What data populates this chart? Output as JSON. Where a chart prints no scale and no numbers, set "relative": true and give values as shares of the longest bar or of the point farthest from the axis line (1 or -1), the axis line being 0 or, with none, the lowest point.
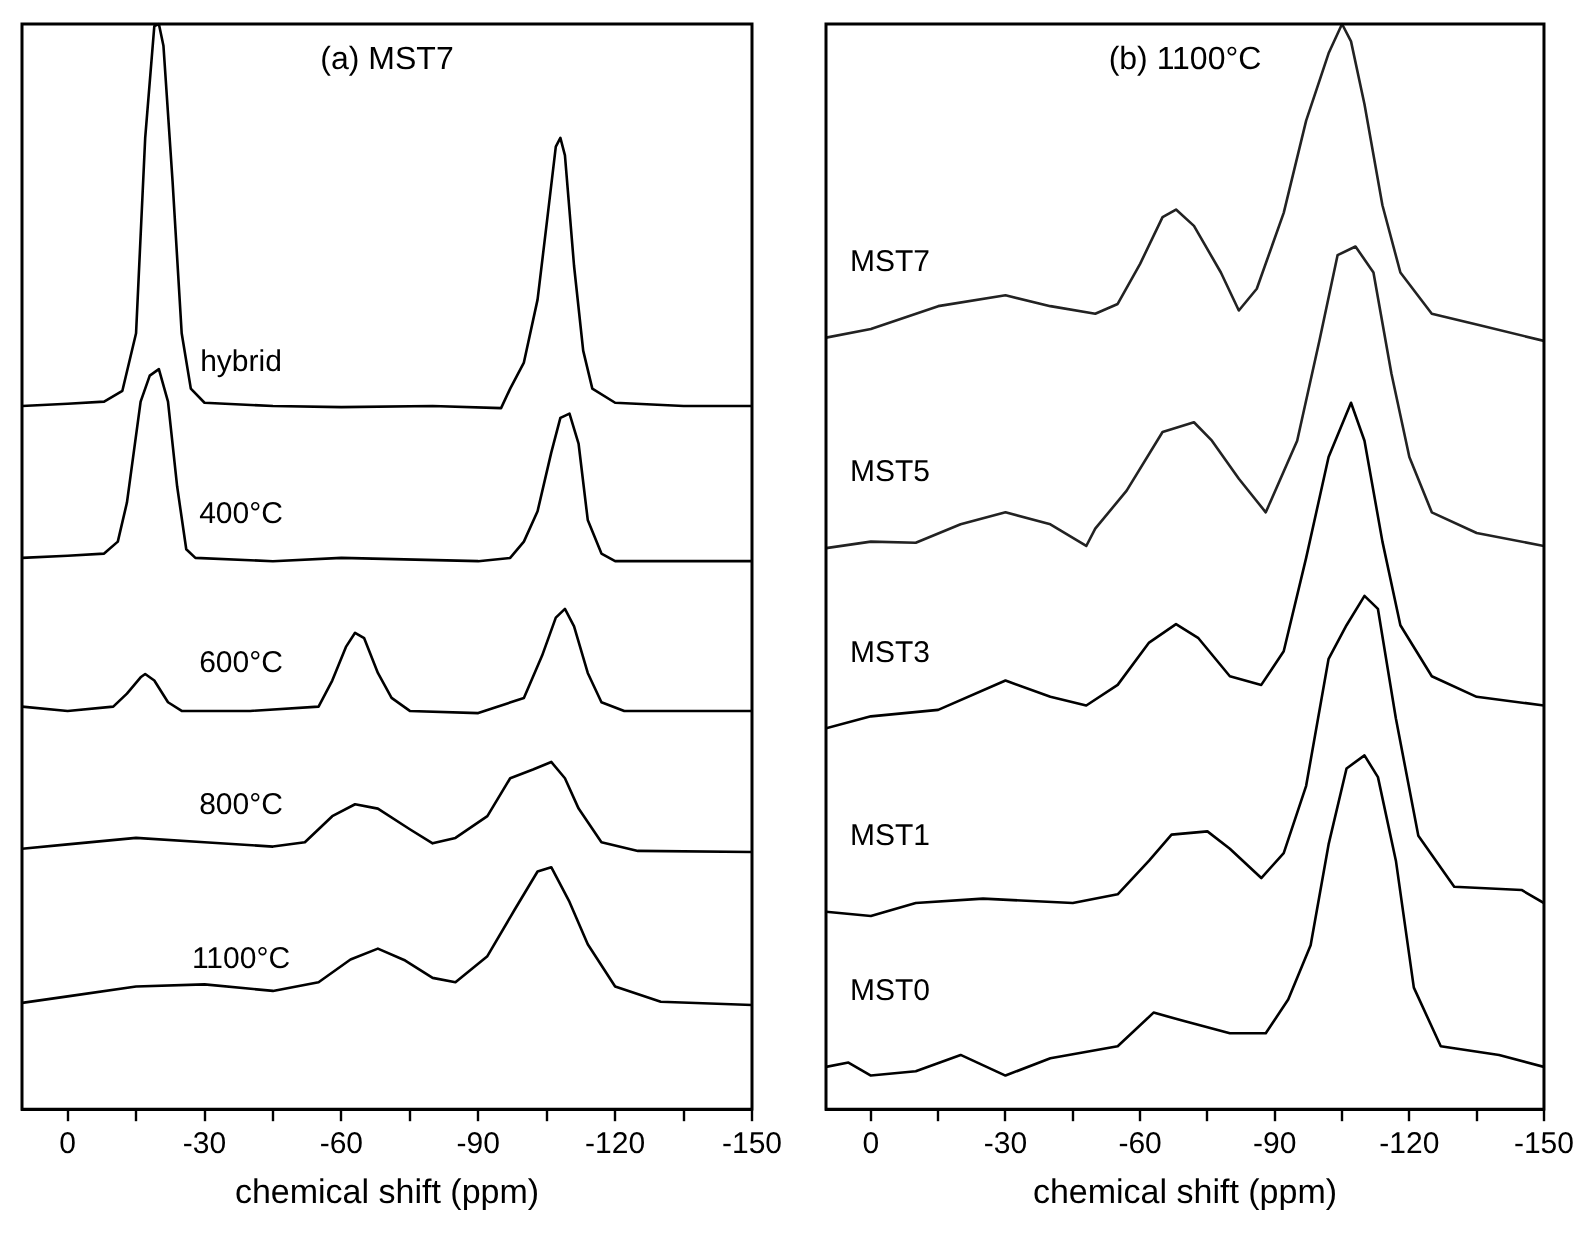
{
  "chart_data": [
    {
      "type": "line",
      "title": "(a) MST7",
      "xlabel": "chemical shift (ppm)",
      "relative": true,
      "marker": "none",
      "line_style": "solid",
      "xlim": [
        10,
        -150
      ],
      "xticks": [
        0,
        {
          "value": -15,
          "label": null
        },
        -30,
        {
          "value": -45,
          "label": null
        },
        -60,
        {
          "value": -75,
          "label": null
        },
        -90,
        {
          "value": -105,
          "label": null
        },
        -120,
        {
          "value": -135,
          "label": null
        },
        -150
      ],
      "series": [
        {
          "name": "hybrid",
          "color": "#000000",
          "x": [
            10,
            0,
            -8,
            -12,
            -15,
            -17,
            -19,
            -20,
            -21,
            -23,
            -25,
            -27,
            -30,
            -45,
            -60,
            -80,
            -95,
            -97,
            -100,
            -103,
            -105,
            -107,
            -108,
            -109,
            -111,
            -113,
            -115,
            -120,
            -135,
            -150
          ],
          "values": [
            0.648,
            0.65,
            0.652,
            0.662,
            0.715,
            0.895,
            0.998,
            1,
            0.98,
            0.855,
            0.715,
            0.664,
            0.651,
            0.648,
            0.647,
            0.648,
            0.646,
            0.664,
            0.688,
            0.746,
            0.816,
            0.887,
            0.895,
            0.879,
            0.777,
            0.699,
            0.664,
            0.651,
            0.648,
            0.648
          ]
        },
        {
          "name": "400°C",
          "color": "#000000",
          "x": [
            10,
            0,
            -8,
            -11,
            -13,
            -16,
            -18,
            -20,
            -22,
            -24,
            -26,
            -28,
            -45,
            -60,
            -90,
            -97,
            -100,
            -103,
            -106,
            -108,
            -110,
            -112,
            -114,
            -117,
            -120,
            -150
          ],
          "values": [
            0.508,
            0.51,
            0.512,
            0.523,
            0.559,
            0.652,
            0.676,
            0.682,
            0.652,
            0.574,
            0.516,
            0.508,
            0.505,
            0.508,
            0.505,
            0.508,
            0.523,
            0.551,
            0.605,
            0.637,
            0.641,
            0.613,
            0.543,
            0.512,
            0.505,
            0.505
          ]
        },
        {
          "name": "600°C",
          "color": "#000000",
          "x": [
            10,
            0,
            -10,
            -13,
            -16,
            -17,
            -19,
            -22,
            -25,
            -40,
            -55,
            -58,
            -61,
            -63,
            -65,
            -68,
            -71,
            -75,
            -90,
            -100,
            -104,
            -107,
            -109,
            -111,
            -114,
            -117,
            -122,
            -150
          ],
          "values": [
            0.371,
            0.367,
            0.371,
            0.383,
            0.398,
            0.401,
            0.395,
            0.375,
            0.367,
            0.367,
            0.371,
            0.395,
            0.426,
            0.439,
            0.434,
            0.402,
            0.379,
            0.367,
            0.365,
            0.379,
            0.418,
            0.453,
            0.461,
            0.445,
            0.402,
            0.375,
            0.367,
            0.367
          ]
        },
        {
          "name": "800°C",
          "color": "#000000",
          "x": [
            10,
            0,
            -15,
            -30,
            -45,
            -52,
            -58,
            -63,
            -68,
            -75,
            -80,
            -85,
            -92,
            -97,
            -102,
            -106,
            -109,
            -112,
            -117,
            -125,
            -150
          ],
          "values": [
            0.24,
            0.244,
            0.25,
            0.246,
            0.242,
            0.246,
            0.27,
            0.281,
            0.277,
            0.258,
            0.245,
            0.25,
            0.27,
            0.305,
            0.313,
            0.32,
            0.305,
            0.277,
            0.246,
            0.238,
            0.237
          ]
        },
        {
          "name": "1100°C",
          "color": "#000000",
          "x": [
            10,
            0,
            -15,
            -30,
            -45,
            -55,
            -62,
            -68,
            -74,
            -80,
            -85,
            -92,
            -98,
            -103,
            -106,
            -110,
            -114,
            -120,
            -130,
            -150
          ],
          "values": [
            0.098,
            0.104,
            0.113,
            0.115,
            0.109,
            0.117,
            0.138,
            0.148,
            0.137,
            0.121,
            0.117,
            0.141,
            0.184,
            0.219,
            0.223,
            0.191,
            0.152,
            0.113,
            0.099,
            0.096
          ]
        }
      ]
    },
    {
      "type": "line",
      "title": "(b) 1100°C",
      "xlabel": "chemical shift (ppm)",
      "relative": true,
      "marker": "none",
      "line_style": "solid",
      "xlim": [
        10,
        -150
      ],
      "xticks": [
        0,
        {
          "value": -15,
          "label": null
        },
        -30,
        {
          "value": -45,
          "label": null
        },
        -60,
        {
          "value": -75,
          "label": null
        },
        -90,
        {
          "value": -105,
          "label": null
        },
        -120,
        {
          "value": -135,
          "label": null
        },
        -150
      ],
      "series": [
        {
          "name": "MST7",
          "color": "#222222",
          "x": [
            10,
            0,
            -15,
            -30,
            -40,
            -50,
            -55,
            -60,
            -65,
            -68,
            -72,
            -78,
            -82,
            -86,
            -92,
            -97,
            -102,
            -105,
            -107,
            -110,
            -114,
            -118,
            -125,
            -135,
            -150
          ],
          "values": [
            0.711,
            0.719,
            0.74,
            0.75,
            0.74,
            0.733,
            0.742,
            0.779,
            0.822,
            0.829,
            0.814,
            0.771,
            0.736,
            0.756,
            0.826,
            0.911,
            0.973,
            1,
            0.984,
            0.926,
            0.833,
            0.771,
            0.733,
            0.723,
            0.708
          ]
        },
        {
          "name": "MST5",
          "color": "#222222",
          "x": [
            10,
            0,
            -10,
            -20,
            -30,
            -40,
            -48,
            -50,
            -57,
            -65,
            -72,
            -76,
            -82,
            -88,
            -95,
            -100,
            -104,
            -108,
            -112,
            -116,
            -120,
            -125,
            -135,
            -150
          ],
          "values": [
            0.517,
            0.523,
            0.522,
            0.539,
            0.55,
            0.539,
            0.519,
            0.535,
            0.57,
            0.624,
            0.633,
            0.616,
            0.581,
            0.55,
            0.616,
            0.709,
            0.787,
            0.795,
            0.771,
            0.678,
            0.601,
            0.55,
            0.531,
            0.519
          ]
        },
        {
          "name": "MST3",
          "color": "#000000",
          "x": [
            10,
            0,
            -15,
            -30,
            -40,
            -48,
            -55,
            -62,
            -68,
            -73,
            -80,
            -87,
            -92,
            -97,
            -102,
            -107,
            -110,
            -114,
            -118,
            -125,
            -135,
            -150
          ],
          "values": [
            0.351,
            0.362,
            0.368,
            0.395,
            0.38,
            0.372,
            0.391,
            0.43,
            0.447,
            0.434,
            0.399,
            0.391,
            0.422,
            0.508,
            0.601,
            0.651,
            0.616,
            0.523,
            0.446,
            0.399,
            0.38,
            0.372
          ]
        },
        {
          "name": "MST1",
          "color": "#000000",
          "x": [
            10,
            0,
            -10,
            -25,
            -45,
            -55,
            -62,
            -67,
            -75,
            -80,
            -87,
            -92,
            -97,
            -102,
            -106,
            -110,
            -113,
            -117,
            -122,
            -130,
            -145,
            -150
          ],
          "values": [
            0.182,
            0.178,
            0.19,
            0.194,
            0.19,
            0.198,
            0.229,
            0.253,
            0.256,
            0.24,
            0.213,
            0.236,
            0.298,
            0.415,
            0.446,
            0.473,
            0.461,
            0.36,
            0.252,
            0.205,
            0.202,
            0.19
          ]
        },
        {
          "name": "MST0",
          "color": "#000000",
          "x": [
            10,
            5,
            0,
            -10,
            -20,
            -30,
            -40,
            -55,
            -63,
            -70,
            -80,
            -88,
            -93,
            -98,
            -102,
            -106,
            -110,
            -113,
            -117,
            -121,
            -127,
            -140,
            -150
          ],
          "values": [
            0.039,
            0.043,
            0.031,
            0.035,
            0.05,
            0.031,
            0.047,
            0.058,
            0.089,
            0.081,
            0.07,
            0.07,
            0.101,
            0.151,
            0.244,
            0.314,
            0.326,
            0.306,
            0.229,
            0.112,
            0.058,
            0.05,
            0.039
          ]
        }
      ]
    }
  ]
}
